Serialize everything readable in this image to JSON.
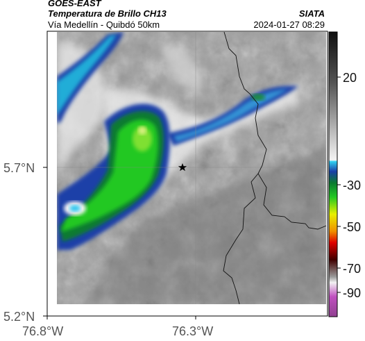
{
  "header": {
    "satellite": "GOES-EAST",
    "product": "Temperatura de Brillo CH13",
    "route": "Vía Medellín - Quibdó 50km",
    "source": "SIATA",
    "timestamp": "2024-01-27 08:29"
  },
  "map": {
    "lon_ticks": [
      "76.8°W",
      "76.3°W"
    ],
    "lat_ticks": [
      "5.7°N",
      "5.2°N"
    ],
    "marker": "star-marker"
  },
  "colorbar": {
    "tick_labels": [
      "20",
      "-30",
      "-50",
      "-70",
      "-90"
    ],
    "colors": {
      "warm_dark": "#2a2a2a",
      "warm_light": "#e8e8e8",
      "cyan": "#22c0e0",
      "blue": "#1a3fa8",
      "green": "#22b822",
      "yellow": "#f0f000",
      "orange": "#f08000",
      "red": "#d00000",
      "dark_red": "#400000",
      "magenta": "#c040c0"
    }
  }
}
